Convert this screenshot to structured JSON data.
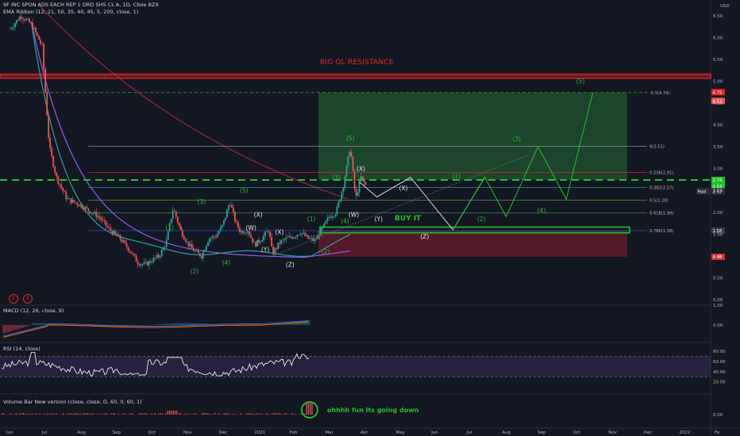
{
  "header": {
    "symbol_line": "9F INC SPON ADS EACH REP 1 ORD SHS CL A, 1D, Cboe BZX",
    "ema_ribbon": "EMA Ribbon (12, 21, 50, 35, 40, 45, 5, 200, close, 1)"
  },
  "indicators": {
    "macd": "MACD (12, 26, close, 9)",
    "rsi": "RSI (14, close)",
    "volume": "Volume Bar New version (close, close, D, 60, 0, 60, 1)"
  },
  "colors": {
    "background": "#131722",
    "resistance": "#e0262a",
    "green": "#22c12d",
    "red_ema": "#e0303a",
    "purple_ema": "#8b5cf6",
    "teal_ema": "#26a69a",
    "target_zone": "#1f4d2e",
    "stop_zone": "#5a1a2a"
  },
  "annotations": {
    "resistance": "BIG OL RESISTANCE",
    "buy": "BUY IT",
    "volume_note": "ohhhh fun its going down",
    "badge_e": "E"
  },
  "chart_data": [
    {
      "type": "line",
      "panel": "price",
      "y_axis_unit": "USD",
      "ylim": [
        0,
        6.75
      ],
      "y_ticks": [
        "0.00",
        "0.50",
        "1.00",
        "1.50",
        "2.00",
        "2.50",
        "3.00",
        "3.50",
        "4.00",
        "4.50",
        "5.00",
        "5.50",
        "6.00",
        "6.50"
      ],
      "x_ticks": [
        "Jun",
        "Jul",
        "Aug",
        "Sep",
        "Oct",
        "Nov",
        "Dec",
        "2021",
        "Feb",
        "Mar",
        "Apr",
        "May",
        "Jun",
        "Jul",
        "Aug",
        "Sep",
        "Oct",
        "Nov",
        "Dec",
        "2022",
        "Fe"
      ],
      "series": [
        {
          "values": [
            [
              0,
              6.2
            ],
            [
              0.3,
              6.5
            ],
            [
              0.6,
              6.3
            ],
            [
              0.9,
              5.8
            ],
            [
              1.1,
              3.5
            ],
            [
              1.3,
              2.8
            ],
            [
              1.6,
              2.3
            ],
            [
              1.9,
              2.2
            ],
            [
              2.2,
              2.05
            ],
            [
              2.5,
              1.9
            ],
            [
              2.8,
              1.6
            ],
            [
              3.1,
              1.4
            ],
            [
              3.4,
              1.1
            ],
            [
              3.6,
              0.85
            ],
            [
              3.8,
              0.8
            ],
            [
              4.0,
              0.9
            ],
            [
              4.2,
              1.0
            ],
            [
              4.4,
              1.3
            ],
            [
              4.6,
              2.1
            ],
            [
              4.8,
              1.6
            ],
            [
              5.0,
              1.3
            ],
            [
              5.2,
              1.1
            ],
            [
              5.4,
              1.0
            ],
            [
              5.6,
              1.4
            ],
            [
              5.8,
              1.45
            ],
            [
              6.0,
              1.7
            ],
            [
              6.2,
              2.25
            ],
            [
              6.35,
              1.8
            ],
            [
              6.5,
              1.55
            ],
            [
              6.7,
              1.6
            ],
            [
              6.9,
              1.25
            ],
            [
              7.1,
              1.4
            ],
            [
              7.3,
              1.6
            ],
            [
              7.4,
              1.05
            ],
            [
              7.6,
              1.3
            ],
            [
              7.8,
              1.4
            ],
            [
              8.0,
              1.45
            ],
            [
              8.2,
              1.55
            ],
            [
              8.4,
              1.4
            ],
            [
              8.6,
              1.35
            ],
            [
              8.8,
              1.6
            ],
            [
              9.0,
              1.9
            ],
            [
              9.2,
              2.0
            ],
            [
              9.4,
              2.6
            ],
            [
              9.6,
              3.5
            ],
            [
              9.75,
              2.3
            ],
            [
              9.9,
              2.8
            ],
            [
              10.05,
              2.6
            ]
          ]
        }
      ],
      "fib_levels": [
        {
          "ratio": "0",
          "price": 3.51,
          "label": "0(3.51)"
        },
        {
          "ratio": "0.236",
          "price": 2.91,
          "label": "0.236(2.91)"
        },
        {
          "ratio": "0.382",
          "price": 2.57,
          "label": "0.382(2.57)"
        },
        {
          "ratio": "0.5",
          "price": 2.28,
          "label": "0.5(2.28)"
        },
        {
          "ratio": "0.618",
          "price": 1.99,
          "label": "0.618(1.99)"
        },
        {
          "ratio": "0.786",
          "price": 1.58,
          "label": "0.786(1.58)"
        },
        {
          "ratio": "-0.5",
          "price": 4.74,
          "label": "-0.5(4.74)"
        }
      ],
      "projection": {
        "x": [
          9.85,
          10.35,
          11.3,
          12.5,
          13.4,
          14.0,
          14.9,
          15.7,
          16.45
        ],
        "y": [
          2.7,
          2.35,
          2.8,
          1.6,
          2.8,
          1.9,
          3.5,
          2.3,
          4.74
        ]
      },
      "wave_labels": [
        {
          "text": "(1)",
          "x": 4.5,
          "y": 1.6
        },
        {
          "text": "(2)",
          "x": 5.2,
          "y": 0.6
        },
        {
          "text": "(3)",
          "x": 5.4,
          "y": 2.2
        },
        {
          "text": "(4)",
          "x": 6.1,
          "y": 0.8
        },
        {
          "text": "(5)",
          "x": 6.6,
          "y": 2.45
        },
        {
          "text": "(X)",
          "x": 7.0,
          "y": 1.9
        },
        {
          "text": "(W)",
          "x": 6.8,
          "y": 1.6
        },
        {
          "text": "(Y)",
          "x": 7.2,
          "y": 1.1
        },
        {
          "text": "(X)",
          "x": 7.6,
          "y": 1.5
        },
        {
          "text": "(Z)",
          "x": 7.9,
          "y": 0.75
        },
        {
          "text": "(1)",
          "x": 8.5,
          "y": 1.8
        },
        {
          "text": "(2)",
          "x": 8.9,
          "y": 1.05
        },
        {
          "text": "(3)",
          "x": 9.2,
          "y": 2.75
        },
        {
          "text": "(4)",
          "x": 9.45,
          "y": 1.75
        },
        {
          "text": "(5)",
          "x": 9.6,
          "y": 3.65
        },
        {
          "text": "(X)",
          "x": 9.9,
          "y": 2.95
        },
        {
          "text": "(W)",
          "x": 9.7,
          "y": 1.9
        },
        {
          "text": "(X)",
          "x": 11.1,
          "y": 2.5
        },
        {
          "text": "(Y)",
          "x": 10.4,
          "y": 1.8
        },
        {
          "text": "(Z)",
          "x": 11.7,
          "y": 1.4
        },
        {
          "text": "(1)",
          "x": 12.6,
          "y": 2.78
        },
        {
          "text": "(2)",
          "x": 13.3,
          "y": 1.8
        },
        {
          "text": "(3)",
          "x": 14.3,
          "y": 3.63
        },
        {
          "text": "(4)",
          "x": 15.0,
          "y": 2.0
        },
        {
          "text": "(5)",
          "x": 16.1,
          "y": 4.95
        }
      ],
      "price_labels": [
        {
          "text": "4.75",
          "price": 4.75
        },
        {
          "text": "4.53",
          "price": 4.55
        },
        {
          "text": "2.74",
          "price": 2.74
        },
        {
          "text": "2.53",
          "price": 2.6
        },
        {
          "text": "Pool",
          "price": 2.48
        },
        {
          "text": "2.52",
          "price": 2.48
        },
        {
          "text": "1.58",
          "price": 1.58
        },
        {
          "text": "0.98",
          "price": 0.98
        }
      ]
    },
    {
      "type": "line",
      "panel": "macd",
      "y_ticks": [
        "1.00",
        "0.00"
      ]
    },
    {
      "type": "line",
      "panel": "rsi",
      "y_ticks": [
        "80.00",
        "60.00",
        "40.00",
        "20.00"
      ]
    },
    {
      "type": "bar",
      "panel": "volume",
      "y_ticks": [
        "0.00"
      ]
    }
  ]
}
